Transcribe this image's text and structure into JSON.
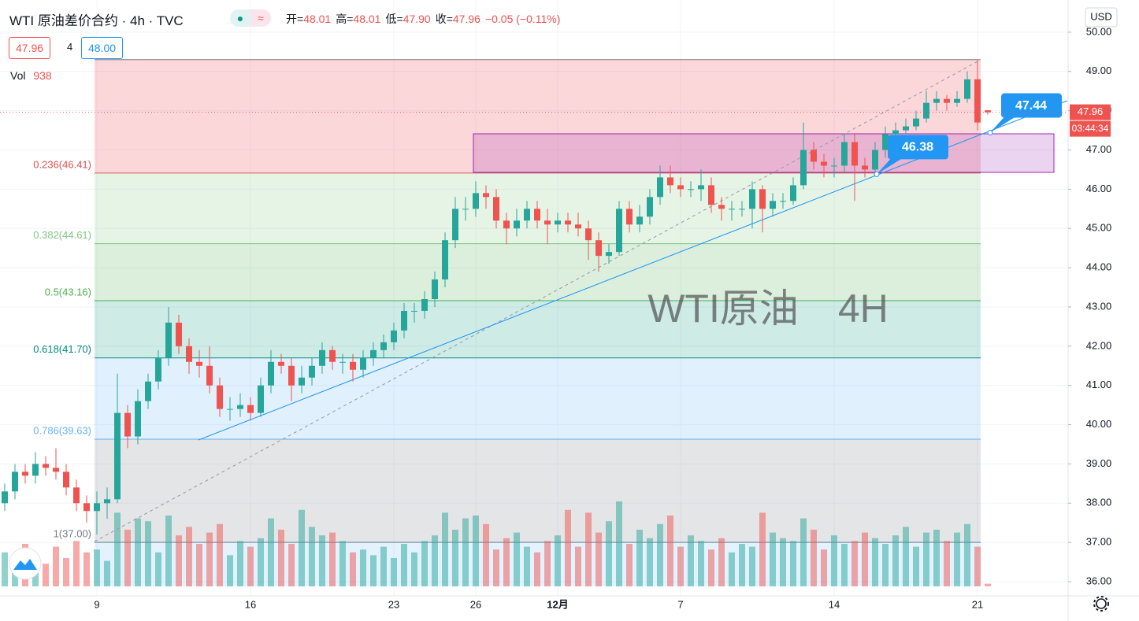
{
  "ui": {
    "symbol": "WTI 原油差价合约 · 4h · TVC",
    "ohlc": [
      {
        "label": "开=",
        "value": "48.01"
      },
      {
        "label": "高=",
        "value": "48.01"
      },
      {
        "label": "低=",
        "value": "47.90"
      },
      {
        "label": "收=",
        "value": "47.96"
      }
    ],
    "change": "−0.05 (−0.11%)",
    "bid": "47.96",
    "spread": "4",
    "ask": "48.00",
    "volume_label": "Vol",
    "currency": "USD",
    "countdown": "03:44:34"
  },
  "chart_data": {
    "type": "candlestick",
    "watermark": "WTI原油　4H",
    "up_color": "#26a69a",
    "down_color": "#ef5350",
    "categories": [
      null,
      null,
      null,
      null,
      null,
      null,
      null,
      null,
      null,
      "9",
      null,
      null,
      null,
      null,
      null,
      null,
      null,
      null,
      null,
      null,
      null,
      null,
      null,
      null,
      "16",
      null,
      null,
      null,
      null,
      null,
      null,
      null,
      null,
      null,
      null,
      null,
      null,
      null,
      "23",
      null,
      null,
      null,
      null,
      null,
      null,
      null,
      "26",
      null,
      null,
      null,
      null,
      null,
      null,
      null,
      "12月",
      null,
      null,
      null,
      null,
      null,
      null,
      null,
      null,
      null,
      null,
      null,
      "7",
      null,
      null,
      null,
      null,
      null,
      null,
      null,
      null,
      null,
      null,
      null,
      null,
      null,
      null,
      "14",
      null,
      null,
      null,
      null,
      null,
      null,
      null,
      null,
      null,
      null,
      null,
      null,
      null,
      "21",
      null
    ],
    "open": [
      38.0,
      38.3,
      38.8,
      38.7,
      39.0,
      38.9,
      38.8,
      38.4,
      38.0,
      37.8,
      38.0,
      38.1,
      40.3,
      39.7,
      40.6,
      41.1,
      41.7,
      42.6,
      42.0,
      41.6,
      41.5,
      41.0,
      40.4,
      40.4,
      40.5,
      40.3,
      41.0,
      41.6,
      41.5,
      41.0,
      41.2,
      41.5,
      41.9,
      41.6,
      41.6,
      41.4,
      41.7,
      41.9,
      42.1,
      42.4,
      42.9,
      42.9,
      43.2,
      43.7,
      44.7,
      45.5,
      45.5,
      45.9,
      45.8,
      45.2,
      45.0,
      45.2,
      45.5,
      45.2,
      45.1,
      45.2,
      45.1,
      45.0,
      44.7,
      44.3,
      44.4,
      45.5,
      45.1,
      45.3,
      45.8,
      46.3,
      46.1,
      46.0,
      46.0,
      46.1,
      45.6,
      45.5,
      45.5,
      45.5,
      46.0,
      45.5,
      45.7,
      45.7,
      46.1,
      47.0,
      46.7,
      46.6,
      46.6,
      47.2,
      46.6,
      46.5,
      47.0,
      47.4,
      47.5,
      47.6,
      47.8,
      48.2,
      48.3,
      48.2,
      48.3,
      48.8,
      48.01
    ],
    "high": [
      38.5,
      39.0,
      39.0,
      39.3,
      39.2,
      39.4,
      39.0,
      38.6,
      38.2,
      38.3,
      38.4,
      41.3,
      40.5,
      40.9,
      41.3,
      41.9,
      43.0,
      42.8,
      42.2,
      41.9,
      42.0,
      41.2,
      40.7,
      40.8,
      40.7,
      41.2,
      41.9,
      41.8,
      41.7,
      41.5,
      41.7,
      42.1,
      42.0,
      41.8,
      41.8,
      41.9,
      42.1,
      42.3,
      42.6,
      43.1,
      43.1,
      43.4,
      43.9,
      44.9,
      45.8,
      45.8,
      46.2,
      46.1,
      46.0,
      45.4,
      45.5,
      45.7,
      45.7,
      45.5,
      45.4,
      45.4,
      45.4,
      45.2,
      44.9,
      44.6,
      45.7,
      45.7,
      45.6,
      46.0,
      46.6,
      46.6,
      46.3,
      46.2,
      46.5,
      46.3,
      45.8,
      45.7,
      45.7,
      46.2,
      46.1,
      45.9,
      45.9,
      46.3,
      47.7,
      47.2,
      46.9,
      46.8,
      47.4,
      47.4,
      46.8,
      47.2,
      47.6,
      47.7,
      47.8,
      48.0,
      48.5,
      48.5,
      48.4,
      48.5,
      49.0,
      49.3,
      48.01
    ],
    "low": [
      37.8,
      38.1,
      38.5,
      38.5,
      38.7,
      38.6,
      38.2,
      37.8,
      37.5,
      37.2,
      37.6,
      38.0,
      39.4,
      39.5,
      40.4,
      40.9,
      41.5,
      41.8,
      41.3,
      41.2,
      40.8,
      40.2,
      40.1,
      40.2,
      40.1,
      40.2,
      40.8,
      41.3,
      40.6,
      40.8,
      41.0,
      41.3,
      41.4,
      41.3,
      41.1,
      41.2,
      41.5,
      41.7,
      41.9,
      42.2,
      42.6,
      42.7,
      43.0,
      43.5,
      44.5,
      45.2,
      45.3,
      45.5,
      45.0,
      44.6,
      44.8,
      45.0,
      45.0,
      44.6,
      44.9,
      44.9,
      44.8,
      44.2,
      43.9,
      44.1,
      44.3,
      44.9,
      44.9,
      45.1,
      45.6,
      45.9,
      45.8,
      45.8,
      45.7,
      45.4,
      45.2,
      45.2,
      45.3,
      45.0,
      44.9,
      45.3,
      45.5,
      45.6,
      46.0,
      46.5,
      46.3,
      46.3,
      46.4,
      45.7,
      46.3,
      46.4,
      46.8,
      47.3,
      47.4,
      47.5,
      47.7,
      48.0,
      48.0,
      48.1,
      48.2,
      47.5,
      47.9
    ],
    "close": [
      38.3,
      38.8,
      38.7,
      39.0,
      38.9,
      38.8,
      38.4,
      38.0,
      37.8,
      38.0,
      38.1,
      40.3,
      39.7,
      40.6,
      41.1,
      41.7,
      42.6,
      42.0,
      41.6,
      41.5,
      41.0,
      40.4,
      40.4,
      40.5,
      40.3,
      41.0,
      41.6,
      41.5,
      41.0,
      41.2,
      41.5,
      41.9,
      41.6,
      41.6,
      41.4,
      41.7,
      41.9,
      42.1,
      42.4,
      42.9,
      42.9,
      43.2,
      43.7,
      44.7,
      45.5,
      45.5,
      45.9,
      45.8,
      45.2,
      45.0,
      45.2,
      45.5,
      45.2,
      45.1,
      45.2,
      45.1,
      45.0,
      44.7,
      44.3,
      44.4,
      45.5,
      45.1,
      45.3,
      45.8,
      46.3,
      46.1,
      46.0,
      46.0,
      46.1,
      45.6,
      45.5,
      45.5,
      45.5,
      46.0,
      45.5,
      45.7,
      45.7,
      46.1,
      47.0,
      46.7,
      46.6,
      46.6,
      47.2,
      46.6,
      46.5,
      47.0,
      47.4,
      47.5,
      47.6,
      47.8,
      48.2,
      48.3,
      48.2,
      48.3,
      48.8,
      47.7,
      47.96
    ],
    "volume": [
      12000,
      9000,
      15000,
      11000,
      8000,
      14000,
      10000,
      16000,
      12000,
      13000,
      9000,
      26000,
      20000,
      24000,
      23000,
      12000,
      25000,
      18000,
      21000,
      15000,
      19000,
      22000,
      11000,
      16000,
      14000,
      17000,
      24000,
      20000,
      15000,
      27000,
      21000,
      18000,
      19000,
      16000,
      12000,
      13000,
      11000,
      14000,
      10000,
      15000,
      12000,
      16000,
      18000,
      26000,
      20000,
      24000,
      25000,
      22000,
      13000,
      17000,
      19000,
      14000,
      12000,
      16000,
      18000,
      27000,
      14000,
      26000,
      19000,
      23000,
      30000,
      15000,
      20000,
      17000,
      22000,
      25000,
      14000,
      18000,
      16000,
      13000,
      17000,
      12000,
      15000,
      14000,
      26000,
      19000,
      17000,
      16000,
      24000,
      20000,
      13000,
      18000,
      15000,
      16000,
      19000,
      17000,
      15000,
      18000,
      21000,
      14000,
      19000,
      20000,
      16000,
      19000,
      22000,
      14000,
      938
    ],
    "ylim": [
      35.64,
      50.82
    ],
    "yticks": [
      {
        "value": 36,
        "label": "36.00"
      },
      {
        "value": 37,
        "label": "37.00"
      },
      {
        "value": 38,
        "label": "38.00"
      },
      {
        "value": 39,
        "label": "39.00"
      },
      {
        "value": 40,
        "label": "40.00"
      },
      {
        "value": 41,
        "label": "41.00"
      },
      {
        "value": 42,
        "label": "42.00"
      },
      {
        "value": 43,
        "label": "43.00"
      },
      {
        "value": 44,
        "label": "44.00"
      },
      {
        "value": 45,
        "label": "45.00"
      },
      {
        "value": 46,
        "label": "46.00"
      },
      {
        "value": 47,
        "label": "47.00"
      },
      {
        "value": 48,
        "label": "48.00"
      },
      {
        "value": 49,
        "label": "49.00"
      },
      {
        "value": 50,
        "label": "50.00"
      }
    ],
    "grid": true,
    "fib_levels": [
      {
        "value": 49.3,
        "color": "#787b86"
      },
      {
        "value": 46.41,
        "label": "0.236(46.41)",
        "color": "#e04f4f",
        "fill": "rgba(242,54,69,0.2)"
      },
      {
        "value": 44.61,
        "label": "0.382(44.61)",
        "color": "#81c784",
        "fill": "rgba(129,199,132,0.2)"
      },
      {
        "value": 43.16,
        "label": "0.5(43.16)",
        "color": "#4caf50",
        "fill": "rgba(76,175,80,0.2)"
      },
      {
        "value": 41.7,
        "label": "0.618(41.70)",
        "color": "#00897b",
        "fill": "rgba(8,153,129,0.2)"
      },
      {
        "value": 39.63,
        "label": "0.786(39.63)",
        "color": "#64b5f6",
        "fill": "rgba(100,181,246,0.2)"
      },
      {
        "value": 37.0,
        "label": "1(37.00)",
        "color": "#787b86",
        "fill": "rgba(120,123,134,0.2)"
      }
    ],
    "callouts": [
      46.38,
      47.44
    ]
  }
}
